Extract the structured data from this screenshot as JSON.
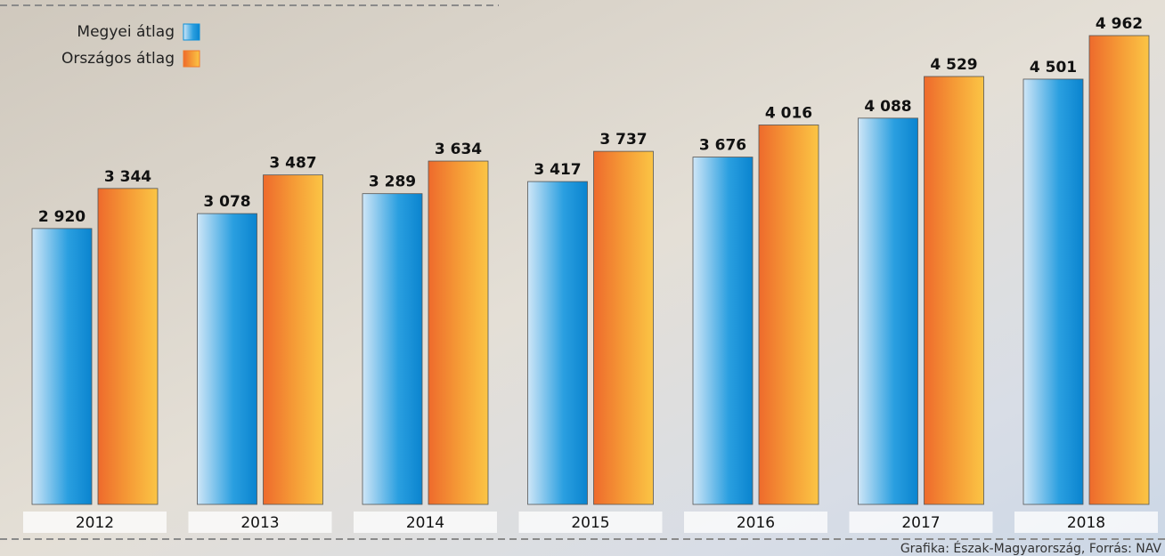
{
  "chart_data": {
    "type": "bar",
    "categories": [
      "2012",
      "2013",
      "2014",
      "2015",
      "2016",
      "2017",
      "2018"
    ],
    "series": [
      {
        "name": "Megyei átlag",
        "color": "#0a8fd8",
        "values": [
          2920,
          3078,
          3289,
          3417,
          3676,
          4088,
          4501
        ],
        "value_labels": [
          "2 920",
          "3 078",
          "3 289",
          "3 417",
          "3 676",
          "4 088",
          "4 501"
        ]
      },
      {
        "name": "Országos átlag",
        "color": "#f07a2a",
        "values": [
          3344,
          3487,
          3634,
          3737,
          4016,
          4529,
          4962
        ],
        "value_labels": [
          "3 344",
          "3 487",
          "3 634",
          "3 737",
          "4 016",
          "4 529",
          "4 962"
        ]
      }
    ],
    "source": "Grafika: Észak-Magyarország, Forrás: NAV"
  }
}
